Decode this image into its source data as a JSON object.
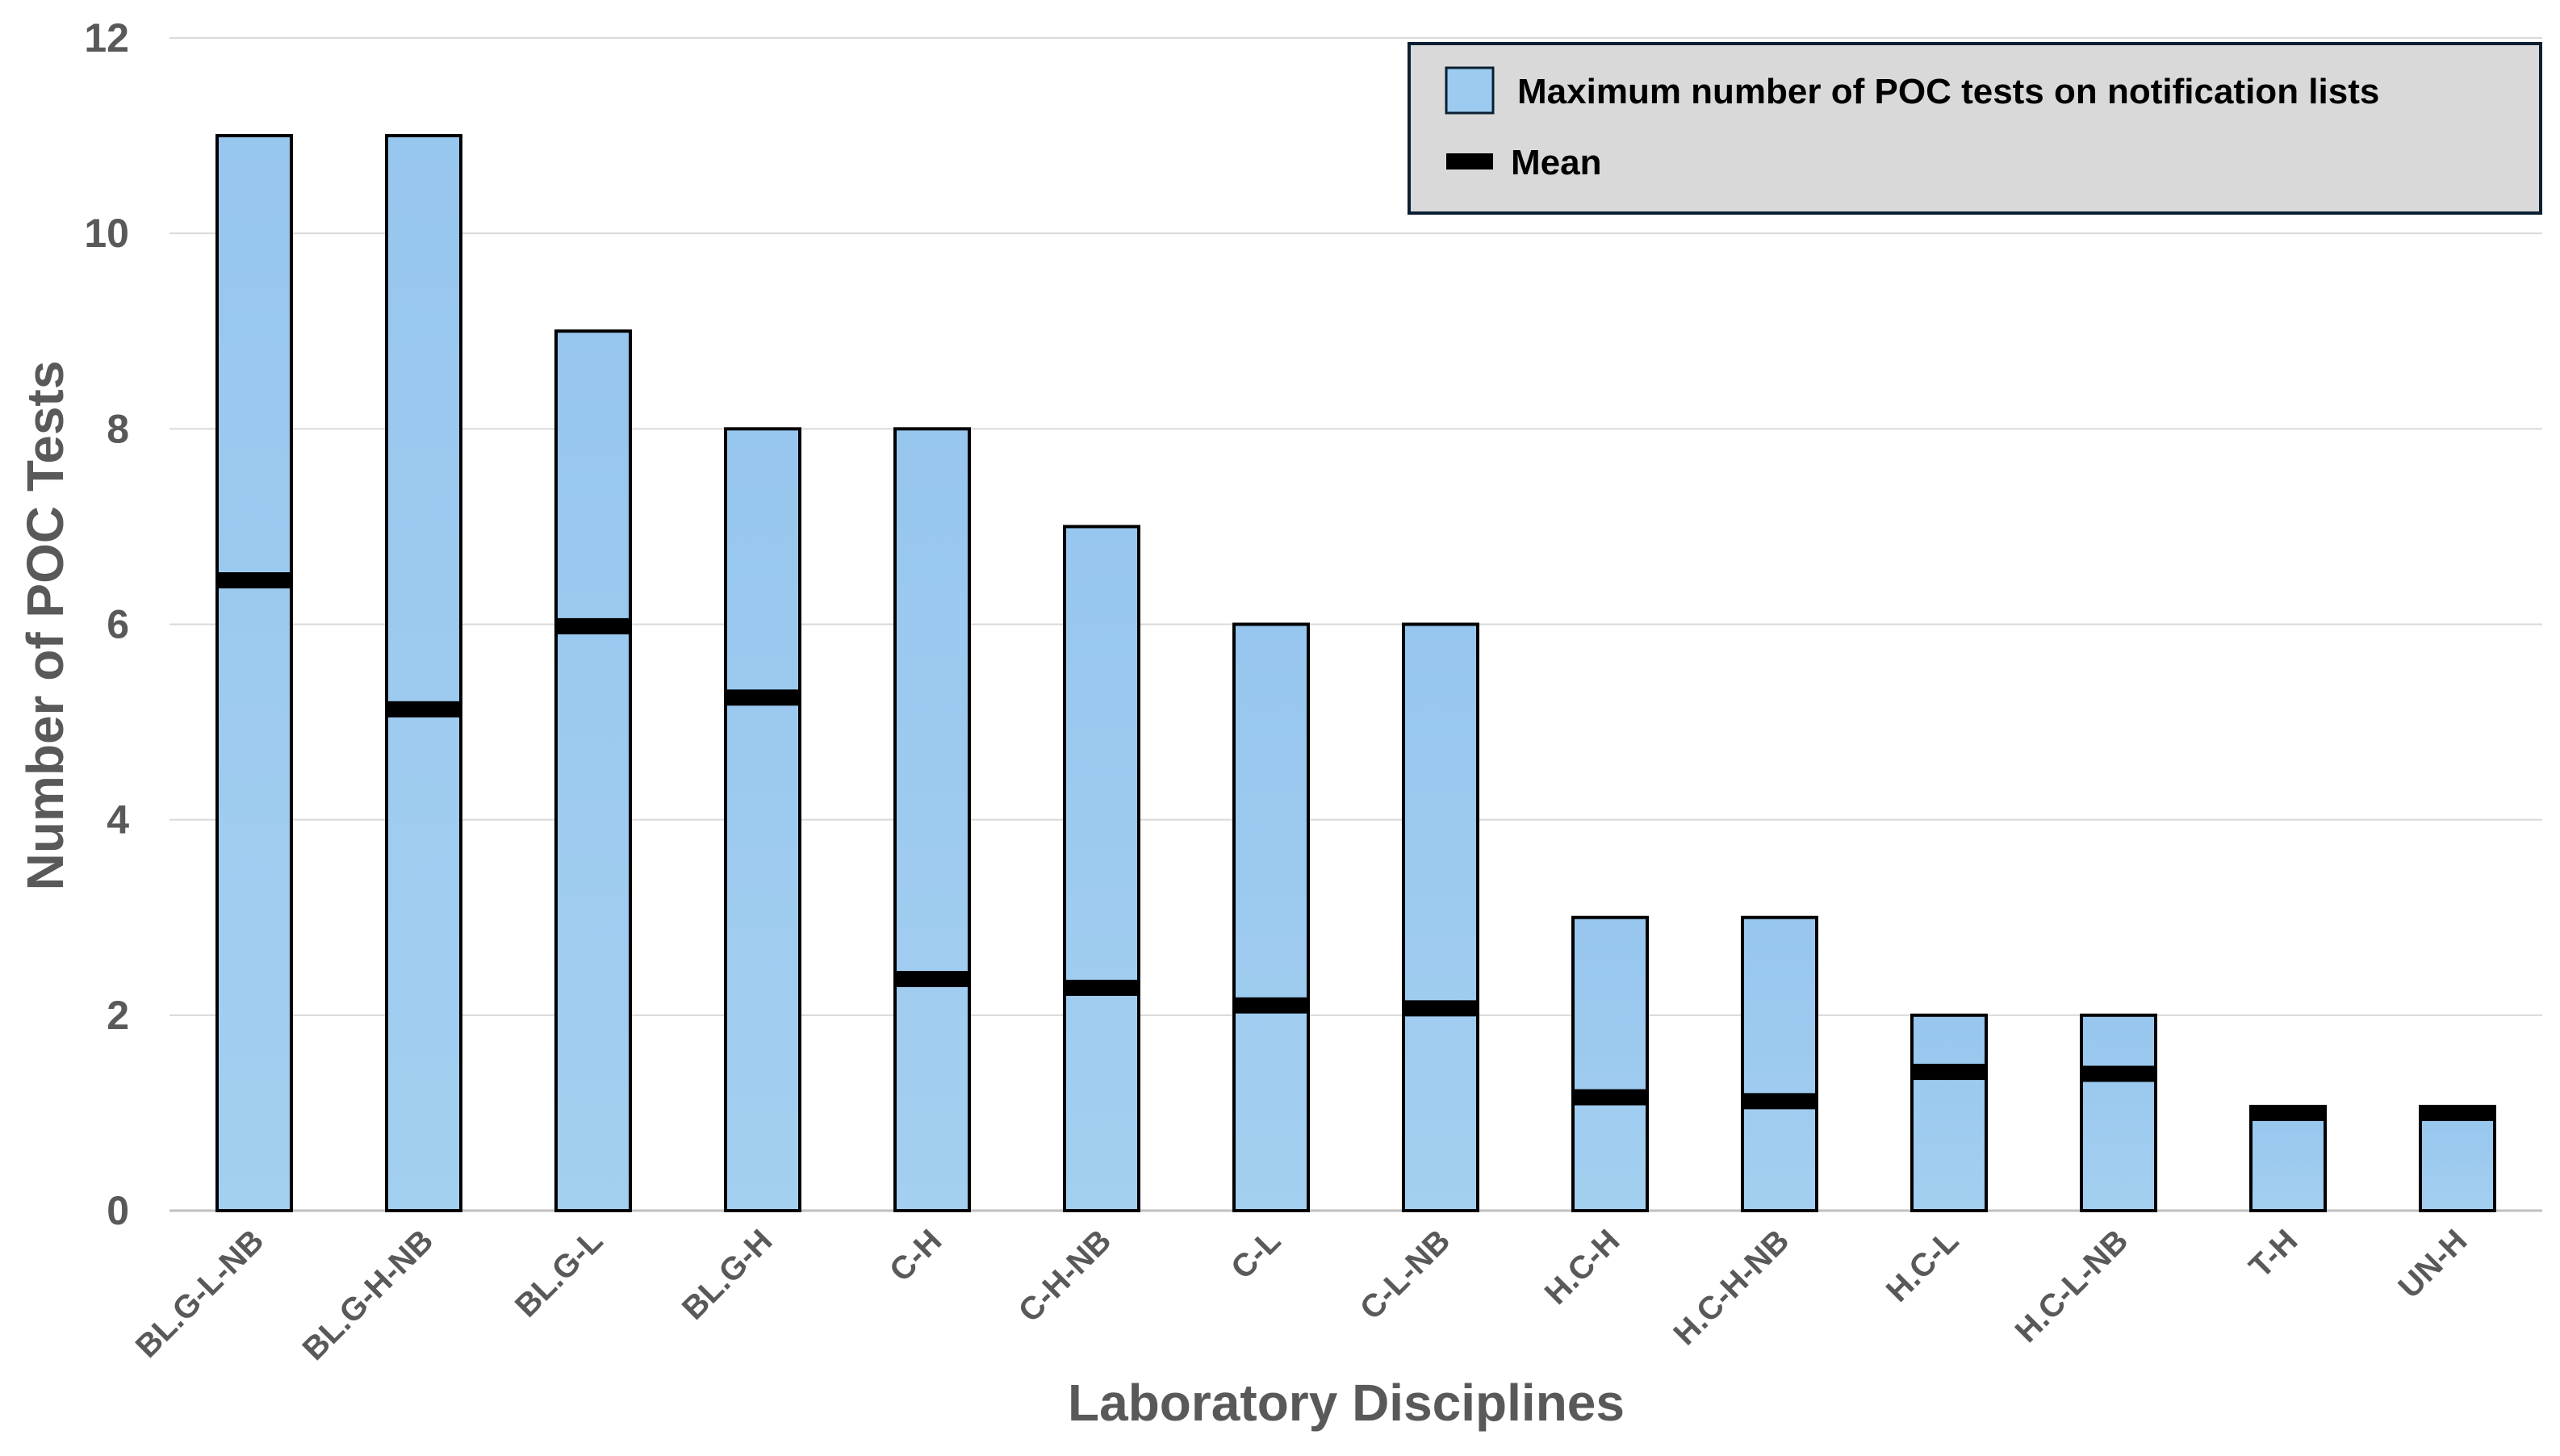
{
  "chart_data": {
    "type": "bar",
    "xlabel": "Laboratory Disciplines",
    "ylabel": "Number of POC Tests",
    "ylim": [
      0,
      12
    ],
    "yticks": [
      "0",
      "2",
      "4",
      "6",
      "8",
      "10",
      "12"
    ],
    "grid": true,
    "legend_position": "top-right",
    "categories": [
      "BL.G-L-NB",
      "BL.G-H-NB",
      "BL.G-L",
      "BL.G-H",
      "C-H",
      "C-H-NB",
      "C-L",
      "C-L-NB",
      "H.C-H",
      "H.C-H-NB",
      "H.C-L",
      "H.C-L-NB",
      "T-H",
      "UN-H"
    ],
    "series": [
      {
        "name": "Maximum number of POC tests on notification lists",
        "kind": "bar",
        "color": "#9DCBEF",
        "values": [
          11,
          11,
          9,
          8,
          8,
          7,
          6,
          6,
          3,
          3,
          2,
          2,
          1,
          1
        ]
      },
      {
        "name": "Mean",
        "kind": "marker",
        "color": "#000000",
        "values": [
          6.45,
          5.13,
          5.98,
          5.25,
          2.37,
          2.28,
          2.1,
          2.07,
          1.16,
          1.12,
          1.42,
          1.4,
          1.0,
          1.0
        ]
      }
    ]
  }
}
